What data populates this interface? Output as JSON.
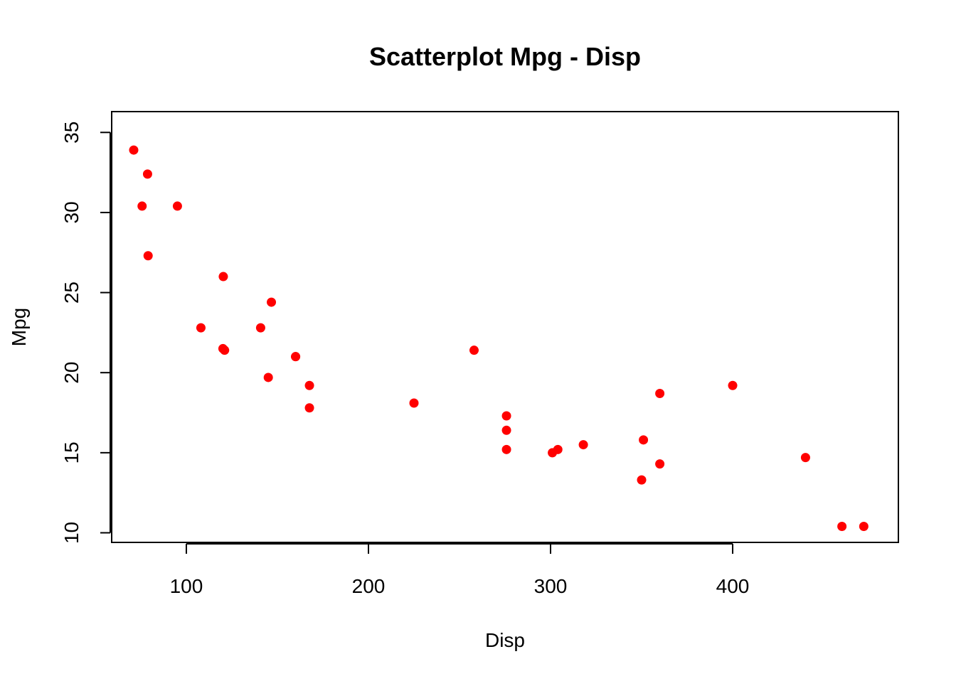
{
  "chart_data": {
    "type": "scatter",
    "title": "Scatterplot Mpg - Disp",
    "xlabel": "Disp",
    "ylabel": "Mpg",
    "xlim": [
      59.0,
      491.0
    ],
    "ylim": [
      9.4,
      36.3
    ],
    "xticks": [
      100,
      200,
      300,
      400
    ],
    "yticks": [
      10,
      15,
      20,
      25,
      30,
      35
    ],
    "grid": false,
    "legend": "none",
    "point_color": "#ff0000",
    "series": [
      {
        "x": [
          160,
          160,
          108,
          258,
          360,
          225,
          360,
          146.7,
          140.8,
          167.6,
          167.6,
          275.8,
          275.8,
          275.8,
          472,
          460,
          440,
          78.7,
          75.7,
          71.1,
          120.1,
          318,
          304,
          350,
          400,
          79,
          120.3,
          95.1,
          351,
          145,
          301,
          121
        ],
        "y": [
          21.0,
          21.0,
          22.8,
          21.4,
          18.7,
          18.1,
          14.3,
          24.4,
          22.8,
          19.2,
          17.8,
          16.4,
          17.3,
          15.2,
          10.4,
          10.4,
          14.7,
          32.4,
          30.4,
          33.9,
          21.5,
          15.5,
          15.2,
          13.3,
          19.2,
          27.3,
          26.0,
          30.4,
          15.8,
          19.7,
          15.0,
          21.4
        ]
      }
    ]
  }
}
